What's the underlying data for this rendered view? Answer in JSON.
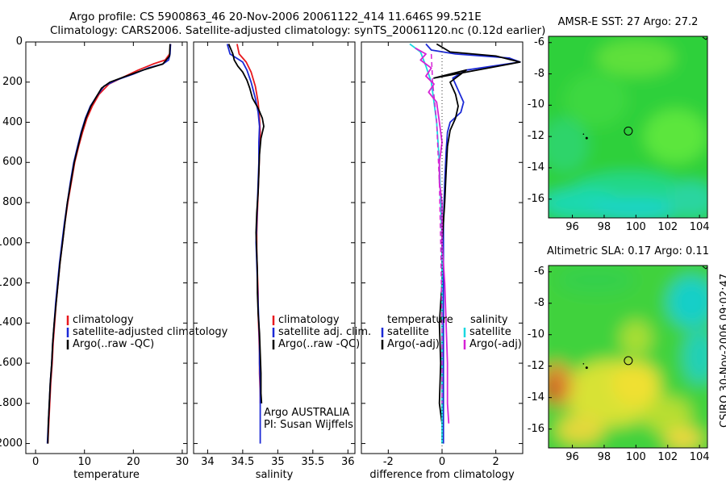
{
  "header": {
    "line1": "Argo profile: CS 5900863_46 20-Nov-2006 20061122_414 11.646S 99.521E",
    "line2": "Climatology: CARS2006. Satellite-adjusted climatology: synTS_20061120.nc (0.12d earlier)"
  },
  "side_label": "CSIRO 30-Nov-2006 09:02:47",
  "colors": {
    "climatology": "#e8191e",
    "satellite": "#1c2ad6",
    "argo": "#000000",
    "sal_sat": "#1ad8e0",
    "sal_argo": "#d622d6"
  },
  "chart_data": [
    {
      "id": "temperature_profile",
      "type": "line",
      "xlabel": "temperature",
      "ylabel": "",
      "xlim": [
        -2,
        31
      ],
      "ylim": [
        2050,
        0
      ],
      "xticks": [
        "0",
        "10",
        "20",
        "30"
      ],
      "yticks": [
        "0",
        "200",
        "400",
        "600",
        "800",
        "1000",
        "1200",
        "1400",
        "1600",
        "1800",
        "2000"
      ],
      "legend": [
        "climatology",
        "satellite-adjusted climatology",
        "Argo(..raw -QC)"
      ],
      "series": [
        {
          "name": "climatology",
          "color": "#e8191e",
          "points": [
            [
              27.6,
              10
            ],
            [
              27.4,
              60
            ],
            [
              26.5,
              90
            ],
            [
              24,
              110
            ],
            [
              21,
              140
            ],
            [
              17.5,
              180
            ],
            [
              15,
              210
            ],
            [
              13,
              260
            ],
            [
              11.6,
              320
            ],
            [
              10.5,
              380
            ],
            [
              9.6,
              450
            ],
            [
              8.8,
              520
            ],
            [
              8,
              600
            ],
            [
              7.3,
              700
            ],
            [
              6.6,
              800
            ],
            [
              6,
              900
            ],
            [
              5.5,
              1000
            ],
            [
              5,
              1100
            ],
            [
              4.6,
              1200
            ],
            [
              4.2,
              1300
            ],
            [
              3.9,
              1400
            ],
            [
              3.6,
              1500
            ],
            [
              3.4,
              1600
            ],
            [
              3.1,
              1700
            ],
            [
              2.9,
              1800
            ],
            [
              2.7,
              1900
            ],
            [
              2.5,
              2000
            ]
          ]
        },
        {
          "name": "satellite-adjusted climatology",
          "color": "#1c2ad6",
          "points": [
            [
              27.6,
              10
            ],
            [
              27.5,
              60
            ],
            [
              27.2,
              90
            ],
            [
              26,
              110
            ],
            [
              23,
              130
            ],
            [
              20,
              160
            ],
            [
              16.5,
              190
            ],
            [
              14,
              220
            ],
            [
              12.5,
              270
            ],
            [
              11.2,
              320
            ],
            [
              10.2,
              380
            ],
            [
              9.3,
              450
            ],
            [
              8.6,
              520
            ],
            [
              7.8,
              600
            ],
            [
              7.1,
              700
            ],
            [
              6.5,
              800
            ],
            [
              5.9,
              900
            ],
            [
              5.4,
              1000
            ],
            [
              4.9,
              1100
            ],
            [
              4.5,
              1200
            ],
            [
              4.1,
              1300
            ],
            [
              3.8,
              1400
            ],
            [
              3.5,
              1500
            ],
            [
              3.3,
              1600
            ],
            [
              3,
              1700
            ],
            [
              2.8,
              1800
            ],
            [
              2.6,
              1900
            ],
            [
              2.4,
              2000
            ]
          ]
        },
        {
          "name": "Argo(..raw -QC)",
          "color": "#000000",
          "points": [
            [
              27.5,
              10
            ],
            [
              27.4,
              70
            ],
            [
              26,
              110
            ],
            [
              22,
              140
            ],
            [
              18,
              175
            ],
            [
              15.2,
              200
            ],
            [
              13.5,
              230
            ],
            [
              12.5,
              270
            ],
            [
              11.3,
              320
            ],
            [
              10.3,
              380
            ],
            [
              9.4,
              450
            ],
            [
              8.7,
              520
            ],
            [
              7.9,
              600
            ],
            [
              7.2,
              700
            ],
            [
              6.5,
              800
            ],
            [
              6,
              900
            ],
            [
              5.5,
              1000
            ],
            [
              5,
              1100
            ],
            [
              4.6,
              1200
            ],
            [
              4.2,
              1300
            ],
            [
              3.8,
              1400
            ],
            [
              3.5,
              1500
            ],
            [
              3.3,
              1600
            ],
            [
              3,
              1700
            ],
            [
              2.8,
              1800
            ],
            [
              2.6,
              1900
            ],
            [
              2.5,
              2000
            ]
          ]
        }
      ]
    },
    {
      "id": "salinity_profile",
      "type": "line",
      "xlabel": "salinity",
      "xlim": [
        33.8,
        36.1
      ],
      "ylim": [
        2050,
        0
      ],
      "xticks": [
        "34",
        "34.5",
        "35",
        "35.5",
        "36"
      ],
      "legend": [
        "climatology",
        "satellite adj. clim.",
        "Argo(..raw -QC)"
      ],
      "annotation": [
        "Argo AUSTRALIA",
        "PI: Susan Wijffels"
      ],
      "series": [
        {
          "name": "climatology",
          "color": "#e8191e",
          "points": [
            [
              34.42,
              10
            ],
            [
              34.45,
              60
            ],
            [
              34.55,
              100
            ],
            [
              34.62,
              150
            ],
            [
              34.68,
              220
            ],
            [
              34.72,
              300
            ],
            [
              34.74,
              380
            ],
            [
              34.75,
              450
            ],
            [
              34.74,
              550
            ],
            [
              34.73,
              650
            ],
            [
              34.72,
              750
            ],
            [
              34.71,
              850
            ],
            [
              34.7,
              950
            ],
            [
              34.7,
              1050
            ],
            [
              34.71,
              1150
            ],
            [
              34.72,
              1250
            ],
            [
              34.72,
              1350
            ],
            [
              34.73,
              1450
            ],
            [
              34.74,
              1550
            ],
            [
              34.74,
              1650
            ],
            [
              34.75,
              1750
            ],
            [
              34.75,
              1800
            ]
          ]
        },
        {
          "name": "satellite adj. clim.",
          "color": "#1c2ad6",
          "points": [
            [
              34.28,
              10
            ],
            [
              34.32,
              60
            ],
            [
              34.5,
              100
            ],
            [
              34.56,
              140
            ],
            [
              34.62,
              200
            ],
            [
              34.68,
              280
            ],
            [
              34.72,
              350
            ],
            [
              34.74,
              420
            ],
            [
              34.73,
              500
            ],
            [
              34.73,
              600
            ],
            [
              34.72,
              700
            ],
            [
              34.71,
              800
            ],
            [
              34.7,
              900
            ],
            [
              34.69,
              1000
            ],
            [
              34.7,
              1100
            ],
            [
              34.71,
              1200
            ],
            [
              34.72,
              1300
            ],
            [
              34.73,
              1400
            ],
            [
              34.74,
              1500
            ],
            [
              34.74,
              1600
            ],
            [
              34.75,
              1700
            ],
            [
              34.75,
              1800
            ],
            [
              34.75,
              1900
            ],
            [
              34.75,
              2000
            ]
          ]
        },
        {
          "name": "Argo(..raw -QC)",
          "color": "#000000",
          "points": [
            [
              34.3,
              10
            ],
            [
              34.36,
              60
            ],
            [
              34.38,
              90
            ],
            [
              34.43,
              120
            ],
            [
              34.5,
              150
            ],
            [
              34.56,
              190
            ],
            [
              34.6,
              230
            ],
            [
              34.64,
              280
            ],
            [
              34.72,
              330
            ],
            [
              34.78,
              380
            ],
            [
              34.8,
              420
            ],
            [
              34.76,
              480
            ],
            [
              34.74,
              560
            ],
            [
              34.73,
              650
            ],
            [
              34.72,
              750
            ],
            [
              34.7,
              850
            ],
            [
              34.69,
              950
            ],
            [
              34.7,
              1050
            ],
            [
              34.71,
              1150
            ],
            [
              34.71,
              1250
            ],
            [
              34.72,
              1350
            ],
            [
              34.74,
              1450
            ],
            [
              34.75,
              1550
            ],
            [
              34.76,
              1650
            ],
            [
              34.76,
              1750
            ],
            [
              34.77,
              1800
            ]
          ]
        }
      ]
    },
    {
      "id": "difference_profile",
      "type": "line",
      "xlabel": "difference from climatology",
      "xlim": [
        -3,
        3
      ],
      "ylim": [
        2050,
        0
      ],
      "xticks": [
        "-2",
        "0",
        "2"
      ],
      "legend_left": {
        "title": "temperature",
        "items": [
          "satellite",
          "Argo(-adj)"
        ]
      },
      "legend_right": {
        "title": "salinity",
        "items": [
          "satellite",
          "Argo(-adj)"
        ]
      },
      "series": [
        {
          "name": "temperature satellite",
          "color": "#1c2ad6",
          "points": [
            [
              -0.6,
              10
            ],
            [
              -0.4,
              40
            ],
            [
              0.5,
              60
            ],
            [
              2.5,
              80
            ],
            [
              2.9,
              100
            ],
            [
              0.9,
              140
            ],
            [
              0.4,
              180
            ],
            [
              0.6,
              240
            ],
            [
              0.8,
              300
            ],
            [
              0.7,
              350
            ],
            [
              0.3,
              400
            ],
            [
              0.2,
              450
            ],
            [
              0.15,
              550
            ],
            [
              0.1,
              700
            ],
            [
              0.05,
              900
            ],
            [
              0.05,
              1100
            ],
            [
              0.05,
              1300
            ],
            [
              0.05,
              1500
            ],
            [
              0.05,
              1700
            ],
            [
              0.05,
              1900
            ],
            [
              0.05,
              2000
            ]
          ]
        },
        {
          "name": "temperature Argo(-adj)",
          "color": "#000000",
          "points": [
            [
              -0.2,
              10
            ],
            [
              0.3,
              50
            ],
            [
              2,
              70
            ],
            [
              2.9,
              100
            ],
            [
              -0.3,
              180
            ],
            [
              0.9,
              140
            ],
            [
              0.3,
              200
            ],
            [
              0.5,
              260
            ],
            [
              0.6,
              320
            ],
            [
              0.5,
              380
            ],
            [
              0.3,
              440
            ],
            [
              0.2,
              520
            ],
            [
              0.15,
              650
            ],
            [
              0.1,
              800
            ],
            [
              0,
              1000
            ],
            [
              0,
              1200
            ],
            [
              -0.1,
              1400
            ],
            [
              -0.05,
              1600
            ],
            [
              -0.1,
              1800
            ],
            [
              0,
              1900
            ]
          ]
        },
        {
          "name": "salinity satellite",
          "color": "#1ad8e0",
          "points": [
            [
              -1.2,
              10
            ],
            [
              -0.8,
              50
            ],
            [
              -0.6,
              120
            ],
            [
              -0.4,
              200
            ],
            [
              -0.3,
              300
            ],
            [
              -0.2,
              400
            ],
            [
              -0.1,
              600
            ],
            [
              -0.05,
              800
            ],
            [
              0,
              1000
            ],
            [
              0,
              1300
            ],
            [
              0,
              1600
            ],
            [
              0,
              1900
            ],
            [
              0,
              2000
            ]
          ]
        },
        {
          "name": "salinity Argo(-adj)",
          "color": "#d622d6",
          "points": [
            [
              -1,
              30
            ],
            [
              -0.6,
              60
            ],
            [
              -0.8,
              90
            ],
            [
              -0.4,
              130
            ],
            [
              -0.6,
              170
            ],
            [
              -0.3,
              210
            ],
            [
              -0.5,
              250
            ],
            [
              -0.2,
              300
            ],
            [
              -0.1,
              400
            ],
            [
              0,
              500
            ],
            [
              -0.1,
              600
            ],
            [
              -0.1,
              700
            ],
            [
              0,
              800
            ],
            [
              0,
              1000
            ],
            [
              0.1,
              1200
            ],
            [
              0.15,
              1400
            ],
            [
              0.2,
              1600
            ],
            [
              0.2,
              1800
            ],
            [
              0.25,
              1900
            ]
          ]
        }
      ]
    },
    {
      "id": "sst_map",
      "type": "heatmap",
      "title": "AMSR-E SST: 27 Argo: 27.2",
      "xlim": [
        94.5,
        104.5
      ],
      "ylim": [
        -17.2,
        -5.6
      ],
      "xticks": [
        "96",
        "98",
        "100",
        "102",
        "104"
      ],
      "yticks": [
        "-6",
        "-8",
        "-10",
        "-12",
        "-14",
        "-16"
      ],
      "marker": {
        "lon": 99.52,
        "lat": -11.65
      }
    },
    {
      "id": "sla_map",
      "type": "heatmap",
      "title": "Altimetric SLA: 0.17 Argo: 0.11",
      "xlim": [
        94.5,
        104.5
      ],
      "ylim": [
        -17.2,
        -5.6
      ],
      "xticks": [
        "96",
        "98",
        "100",
        "102",
        "104"
      ],
      "yticks": [
        "-6",
        "-8",
        "-10",
        "-12",
        "-14",
        "-16"
      ],
      "marker": {
        "lon": 99.52,
        "lat": -11.65
      }
    }
  ]
}
